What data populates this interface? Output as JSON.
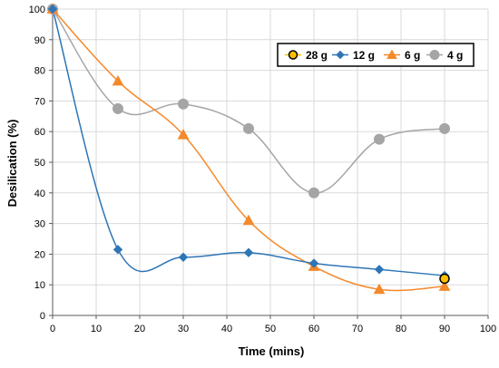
{
  "chart_data": {
    "type": "line",
    "title": "",
    "xlabel": "Time (mins)",
    "ylabel": "Desilication (%)",
    "xlim": [
      0,
      100
    ],
    "ylim": [
      0,
      100
    ],
    "x_ticks": [
      0,
      10,
      20,
      30,
      40,
      50,
      60,
      70,
      80,
      90,
      100
    ],
    "y_ticks": [
      0,
      10,
      20,
      30,
      40,
      50,
      60,
      70,
      80,
      90,
      100
    ],
    "grid": "vertical-and-horizontal",
    "legend_position": "top-right",
    "series": [
      {
        "name": "28 g",
        "color": "#FFC000",
        "marker": "circle-outlined",
        "x": [
          90
        ],
        "y": [
          12
        ]
      },
      {
        "name": "12 g",
        "color": "#2E75B6",
        "marker": "diamond",
        "x": [
          0,
          15,
          30,
          45,
          60,
          75,
          90
        ],
        "y": [
          100,
          21.5,
          19,
          20.5,
          17,
          15,
          13
        ]
      },
      {
        "name": "6 g",
        "color": "#F4892B",
        "marker": "triangle",
        "x": [
          0,
          15,
          30,
          45,
          60,
          75,
          90
        ],
        "y": [
          100,
          76.5,
          59,
          31,
          16,
          8.5,
          9.5
        ]
      },
      {
        "name": "4 g",
        "color": "#A5A5A5",
        "marker": "circle",
        "x": [
          0,
          15,
          30,
          45,
          60,
          75,
          90
        ],
        "y": [
          100,
          67.5,
          69,
          61,
          40,
          57.5,
          61
        ]
      }
    ]
  }
}
